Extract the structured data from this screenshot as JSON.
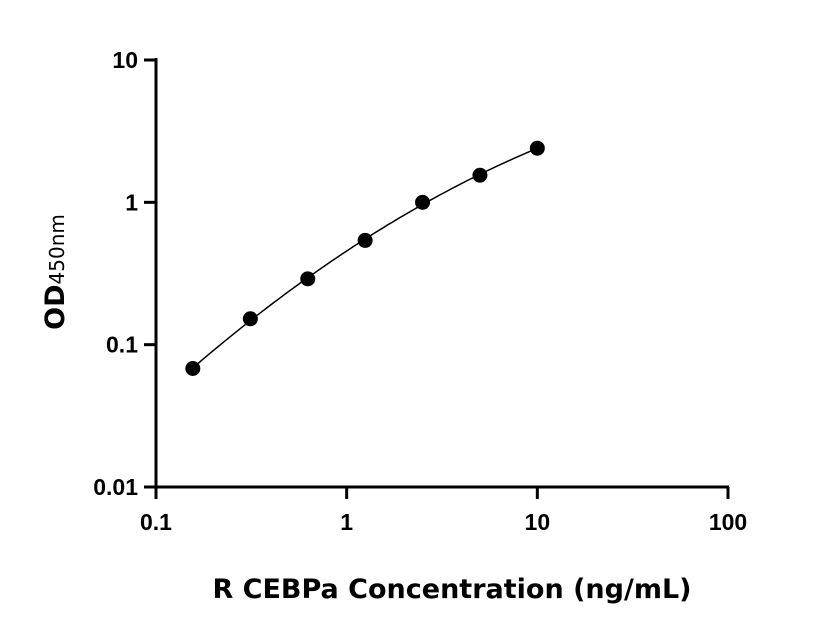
{
  "chart_data": {
    "type": "scatter",
    "xlabel": "R CEBPa Concentration (ng/mL)",
    "ylabel": "OD",
    "ylabel_subscript": "450nm",
    "xscale": "log",
    "yscale": "log",
    "xlim": [
      0.1,
      100
    ],
    "ylim": [
      0.01,
      10
    ],
    "xticks": [
      "0.1",
      "1",
      "10",
      "100"
    ],
    "yticks": [
      "0.01",
      "0.1",
      "1",
      "10"
    ],
    "grid": false,
    "fit_curve": true,
    "marker_color": "#000000",
    "x": [
      0.156,
      0.3125,
      0.625,
      1.25,
      2.5,
      5,
      10
    ],
    "y": [
      0.068,
      0.152,
      0.29,
      0.54,
      1.0,
      1.55,
      2.4
    ]
  }
}
